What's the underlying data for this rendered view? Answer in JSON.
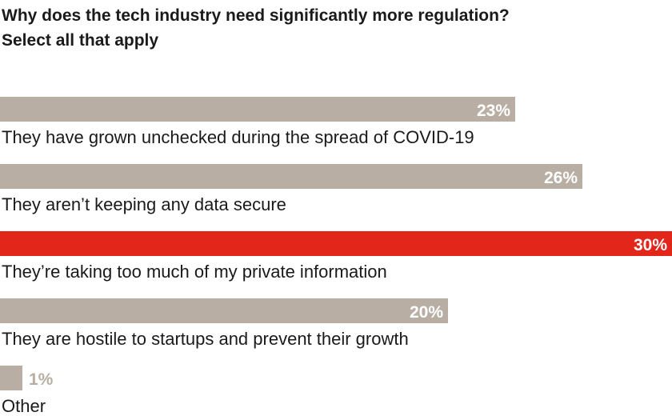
{
  "chart_data": {
    "type": "bar",
    "orientation": "horizontal",
    "title": "Why does the tech industry need significantly more regulation?",
    "subtitle": "Select all that apply",
    "categories": [
      "They have grown unchecked during the spread of COVID-19",
      "They aren’t keeping any data secure",
      "They’re taking too much of my private information",
      "They are hostile to startups and prevent their growth",
      "Other"
    ],
    "values": [
      23,
      26,
      30,
      20,
      1
    ],
    "value_labels": [
      "23%",
      "26%",
      "30%",
      "20%",
      "1%"
    ],
    "unit": "%",
    "xlim": [
      0,
      30
    ],
    "highlight_index": 2,
    "colors": {
      "bar": "#b8aea4",
      "highlight": "#e3261a",
      "label_inside": "#ffffff",
      "label_outside": "#b8aea4"
    },
    "grid": false,
    "legend": "none"
  }
}
